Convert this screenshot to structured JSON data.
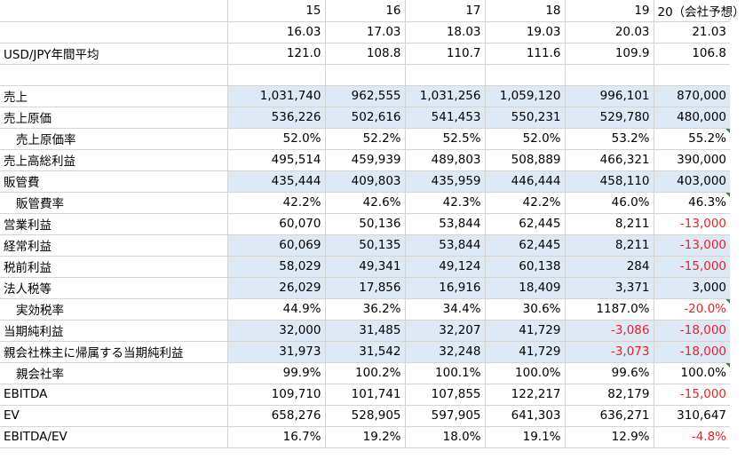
{
  "header": {
    "fiscal_years": [
      "15",
      "16",
      "17",
      "18",
      "19",
      "20（会社予想）"
    ],
    "periods": [
      "16.03",
      "17.03",
      "18.03",
      "19.03",
      "20.03",
      "21.03"
    ]
  },
  "rows": [
    {
      "id": "usdjpy",
      "label": "USD/JPY年間平均",
      "values": [
        "121.0",
        "108.8",
        "110.7",
        "111.6",
        "109.9",
        "106.8"
      ]
    },
    {
      "id": "sales",
      "label": "売上",
      "values": [
        "1,031,740",
        "962,555",
        "1,031,256",
        "1,059,120",
        "996,101",
        "870,000"
      ]
    },
    {
      "id": "cogs",
      "label": "売上原価",
      "values": [
        "536,226",
        "502,616",
        "541,453",
        "550,231",
        "529,780",
        "480,000"
      ]
    },
    {
      "id": "cogs_ratio",
      "label": "売上原価率",
      "values": [
        "52.0%",
        "52.2%",
        "52.5%",
        "52.0%",
        "53.2%",
        "55.2%"
      ]
    },
    {
      "id": "gross_profit",
      "label": "売上高総利益",
      "values": [
        "495,514",
        "459,939",
        "489,803",
        "508,889",
        "466,321",
        "390,000"
      ]
    },
    {
      "id": "sga",
      "label": "販管費",
      "values": [
        "435,444",
        "409,803",
        "435,959",
        "446,444",
        "458,110",
        "403,000"
      ]
    },
    {
      "id": "sga_ratio",
      "label": "販管費率",
      "values": [
        "42.2%",
        "42.6%",
        "42.3%",
        "42.2%",
        "46.0%",
        "46.3%"
      ]
    },
    {
      "id": "operating_income",
      "label": "営業利益",
      "values": [
        "60,070",
        "50,136",
        "53,844",
        "62,445",
        "8,211",
        "-13,000"
      ]
    },
    {
      "id": "ordinary_income",
      "label": "経常利益",
      "values": [
        "60,069",
        "50,135",
        "53,844",
        "62,445",
        "8,211",
        "-13,000"
      ]
    },
    {
      "id": "pretax_income",
      "label": "税前利益",
      "values": [
        "58,029",
        "49,341",
        "49,124",
        "60,138",
        "284",
        "-15,000"
      ]
    },
    {
      "id": "taxes",
      "label": "法人税等",
      "values": [
        "26,029",
        "17,856",
        "16,916",
        "18,409",
        "3,371",
        "3,000"
      ]
    },
    {
      "id": "eff_tax_rate",
      "label": "実効税率",
      "values": [
        "44.9%",
        "36.2%",
        "34.4%",
        "30.6%",
        "1187.0%",
        "-20.0%"
      ]
    },
    {
      "id": "net_income",
      "label": "当期純利益",
      "values": [
        "32,000",
        "31,485",
        "32,207",
        "41,729",
        "-3,086",
        "-18,000"
      ]
    },
    {
      "id": "net_income_parent",
      "label": "親会社株主に帰属する当期純利益",
      "values": [
        "31,973",
        "31,542",
        "32,248",
        "41,729",
        "-3,073",
        "-18,000"
      ]
    },
    {
      "id": "parent_ratio",
      "label": "親会社率",
      "values": [
        "99.9%",
        "100.2%",
        "100.1%",
        "100.0%",
        "99.6%",
        "100.0%"
      ]
    },
    {
      "id": "ebitda",
      "label": "EBITDA",
      "values": [
        "109,710",
        "101,741",
        "107,855",
        "122,217",
        "82,179",
        "-15,000"
      ]
    },
    {
      "id": "ev",
      "label": "EV",
      "values": [
        "658,276",
        "528,905",
        "597,905",
        "641,303",
        "636,271",
        "310,647"
      ]
    },
    {
      "id": "ebitda_ev",
      "label": "EBITDA/EV",
      "values": [
        "16.7%",
        "19.2%",
        "18.0%",
        "19.1%",
        "12.9%",
        "-4.8%"
      ]
    }
  ],
  "colors": {
    "negative": "#e8202a",
    "row_shade": "#dde9f5",
    "gridline": "#d4d4d4",
    "comment_flag": "#1f9a3a"
  }
}
